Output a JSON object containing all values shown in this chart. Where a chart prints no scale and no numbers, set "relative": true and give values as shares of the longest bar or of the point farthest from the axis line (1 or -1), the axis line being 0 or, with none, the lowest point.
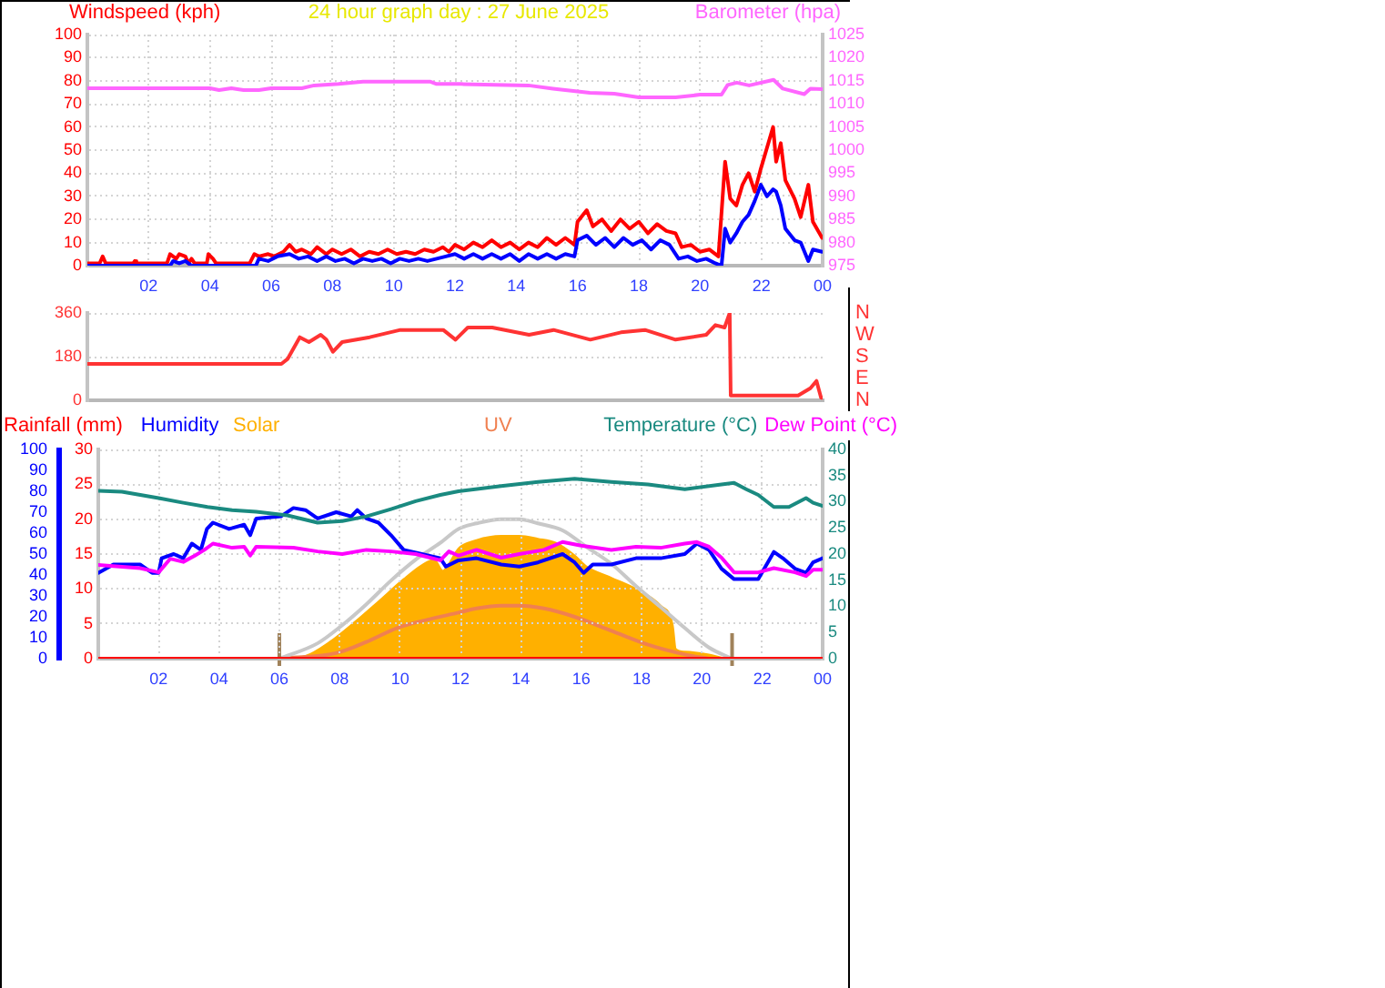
{
  "chart_data": [
    {
      "type": "line",
      "title": "24 hour graph day : 27 June 2025",
      "ylabel": "Windspeed (kph)",
      "y2label": "Barometer (hpa)",
      "xlim": [
        "2025-06-27T00:00",
        "2025-06-28T00:00"
      ],
      "xticks": [
        {
          "value": "2025-06-27T02:00",
          "label": "02"
        },
        {
          "value": "2025-06-27T04:00",
          "label": "04"
        },
        {
          "value": "2025-06-27T06:00",
          "label": "06"
        },
        {
          "value": "2025-06-27T08:00",
          "label": "08"
        },
        {
          "value": "2025-06-27T10:00",
          "label": "10"
        },
        {
          "value": "2025-06-27T12:00",
          "label": "12"
        },
        {
          "value": "2025-06-27T14:00",
          "label": "14"
        },
        {
          "value": "2025-06-27T16:00",
          "label": "16"
        },
        {
          "value": "2025-06-27T18:00",
          "label": "18"
        },
        {
          "value": "2025-06-27T20:00",
          "label": "20"
        },
        {
          "value": "2025-06-27T22:00",
          "label": "22"
        },
        {
          "value": "2025-06-28T00:00",
          "label": "00"
        }
      ],
      "ylim": [
        0,
        100
      ],
      "yticks": [
        0,
        10,
        20,
        30,
        40,
        50,
        60,
        70,
        80,
        90,
        100
      ],
      "y2lim": [
        975,
        1025
      ],
      "y2ticks": [
        975,
        980,
        985,
        990,
        995,
        1000,
        1005,
        1010,
        1015,
        1020,
        1025
      ],
      "grid": true,
      "series": [
        {
          "color": "#ff0000",
          "x": [
            "2025-06-27T00:00",
            "2025-06-27T00:24",
            "2025-06-27T00:30",
            "2025-06-27T00:36",
            "2025-06-27T01:30",
            "2025-06-27T01:33",
            "2025-06-27T01:36",
            "2025-06-27T02:36",
            "2025-06-27T02:42",
            "2025-06-27T02:54",
            "2025-06-27T03:00",
            "2025-06-27T03:12",
            "2025-06-27T03:18",
            "2025-06-27T03:24",
            "2025-06-27T03:30",
            "2025-06-27T03:54",
            "2025-06-27T03:57",
            "2025-06-27T04:06",
            "2025-06-27T04:12",
            "2025-06-27T05:18",
            "2025-06-27T05:27",
            "2025-06-27T05:36",
            "2025-06-27T05:54",
            "2025-06-27T06:06",
            "2025-06-27T06:24",
            "2025-06-27T06:36",
            "2025-06-27T06:48",
            "2025-06-27T07:00",
            "2025-06-27T07:18",
            "2025-06-27T07:30",
            "2025-06-27T07:48",
            "2025-06-27T08:00",
            "2025-06-27T08:18",
            "2025-06-27T08:36",
            "2025-06-27T08:54",
            "2025-06-27T09:12",
            "2025-06-27T09:30",
            "2025-06-27T09:48",
            "2025-06-27T10:06",
            "2025-06-27T10:24",
            "2025-06-27T10:42",
            "2025-06-27T11:00",
            "2025-06-27T11:18",
            "2025-06-27T11:36",
            "2025-06-27T11:48",
            "2025-06-27T12:00",
            "2025-06-27T12:18",
            "2025-06-27T12:36",
            "2025-06-27T12:54",
            "2025-06-27T13:12",
            "2025-06-27T13:30",
            "2025-06-27T13:48",
            "2025-06-27T14:06",
            "2025-06-27T14:24",
            "2025-06-27T14:42",
            "2025-06-27T15:00",
            "2025-06-27T15:18",
            "2025-06-27T15:36",
            "2025-06-27T15:54",
            "2025-06-27T16:00",
            "2025-06-27T16:18",
            "2025-06-27T16:30",
            "2025-06-27T16:48",
            "2025-06-27T17:06",
            "2025-06-27T17:24",
            "2025-06-27T17:42",
            "2025-06-27T18:00",
            "2025-06-27T18:18",
            "2025-06-27T18:36",
            "2025-06-27T18:54",
            "2025-06-27T19:12",
            "2025-06-27T19:24",
            "2025-06-27T19:42",
            "2025-06-27T20:00",
            "2025-06-27T20:18",
            "2025-06-27T20:36",
            "2025-06-27T20:49",
            "2025-06-27T20:59",
            "2025-06-27T21:11",
            "2025-06-27T21:23",
            "2025-06-27T21:35",
            "2025-06-27T21:47",
            "2025-06-27T21:59",
            "2025-06-27T22:11",
            "2025-06-27T22:23",
            "2025-06-27T22:29",
            "2025-06-27T22:38",
            "2025-06-27T22:47",
            "2025-06-27T23:05",
            "2025-06-27T23:17",
            "2025-06-27T23:32",
            "2025-06-27T23:41",
            "2025-06-27T23:59"
          ],
          "values": [
            1,
            1,
            4,
            1,
            1,
            2,
            1,
            1,
            5,
            3,
            5,
            4,
            1,
            3,
            1,
            1,
            5,
            3,
            1,
            1,
            5,
            4,
            5,
            4,
            6,
            9,
            6,
            7,
            5,
            8,
            5,
            7,
            5,
            7,
            4,
            6,
            5,
            7,
            5,
            6,
            5,
            7,
            6,
            8,
            6,
            9,
            7,
            10,
            8,
            11,
            8,
            10,
            7,
            10,
            8,
            12,
            9,
            12,
            9,
            19,
            24,
            17,
            20,
            15,
            20,
            16,
            19,
            14,
            18,
            15,
            14,
            8,
            9,
            6,
            7,
            4,
            45,
            29,
            26,
            35,
            40,
            32,
            42,
            51,
            60,
            45,
            53,
            37,
            29,
            21,
            35,
            19,
            12
          ]
        },
        {
          "color": "#0000ff",
          "x": [
            "2025-06-27T00:00",
            "2025-06-27T02:42",
            "2025-06-27T02:48",
            "2025-06-27T03:00",
            "2025-06-27T03:12",
            "2025-06-27T03:24",
            "2025-06-27T05:30",
            "2025-06-27T05:36",
            "2025-06-27T05:54",
            "2025-06-27T06:12",
            "2025-06-27T06:36",
            "2025-06-27T06:54",
            "2025-06-27T07:12",
            "2025-06-27T07:30",
            "2025-06-27T07:48",
            "2025-06-27T08:06",
            "2025-06-27T08:24",
            "2025-06-27T08:42",
            "2025-06-27T09:00",
            "2025-06-27T09:18",
            "2025-06-27T09:36",
            "2025-06-27T09:54",
            "2025-06-27T10:12",
            "2025-06-27T10:30",
            "2025-06-27T10:48",
            "2025-06-27T11:06",
            "2025-06-27T11:24",
            "2025-06-27T11:42",
            "2025-06-27T12:00",
            "2025-06-27T12:18",
            "2025-06-27T12:36",
            "2025-06-27T12:54",
            "2025-06-27T13:12",
            "2025-06-27T13:30",
            "2025-06-27T13:48",
            "2025-06-27T14:06",
            "2025-06-27T14:24",
            "2025-06-27T14:42",
            "2025-06-27T15:00",
            "2025-06-27T15:18",
            "2025-06-27T15:36",
            "2025-06-27T15:54",
            "2025-06-27T16:00",
            "2025-06-27T16:18",
            "2025-06-27T16:36",
            "2025-06-27T16:54",
            "2025-06-27T17:12",
            "2025-06-27T17:30",
            "2025-06-27T17:48",
            "2025-06-27T18:06",
            "2025-06-27T18:24",
            "2025-06-27T18:42",
            "2025-06-27T19:00",
            "2025-06-27T19:18",
            "2025-06-27T19:36",
            "2025-06-27T19:54",
            "2025-06-27T20:12",
            "2025-06-27T20:30",
            "2025-06-27T20:42",
            "2025-06-27T20:49",
            "2025-06-27T20:59",
            "2025-06-27T21:11",
            "2025-06-27T21:23",
            "2025-06-27T21:35",
            "2025-06-27T21:47",
            "2025-06-27T21:59",
            "2025-06-27T22:11",
            "2025-06-27T22:23",
            "2025-06-27T22:29",
            "2025-06-27T22:38",
            "2025-06-27T22:47",
            "2025-06-27T23:05",
            "2025-06-27T23:17",
            "2025-06-27T23:32",
            "2025-06-27T23:41",
            "2025-06-27T23:59"
          ],
          "values": [
            0,
            0,
            2,
            1,
            2,
            0,
            0,
            3,
            2,
            4,
            5,
            3,
            4,
            2,
            4,
            2,
            3,
            1,
            3,
            2,
            3,
            1,
            3,
            2,
            3,
            2,
            3,
            4,
            5,
            3,
            5,
            3,
            5,
            3,
            5,
            2,
            5,
            3,
            5,
            3,
            5,
            4,
            11,
            13,
            9,
            12,
            8,
            12,
            9,
            11,
            7,
            11,
            9,
            3,
            4,
            2,
            3,
            1,
            0,
            16,
            10,
            14,
            19,
            22,
            28,
            35,
            30,
            33,
            32,
            26,
            16,
            11,
            10,
            2,
            7,
            6
          ]
        },
        {
          "color": "#ff66ff",
          "axis": "y2",
          "x": [
            "2025-06-27T00:00",
            "2025-06-27T04:00",
            "2025-06-27T04:18",
            "2025-06-27T04:42",
            "2025-06-27T05:06",
            "2025-06-27T05:36",
            "2025-06-27T06:00",
            "2025-06-27T07:00",
            "2025-06-27T07:24",
            "2025-06-27T08:12",
            "2025-06-27T09:00",
            "2025-06-27T11:12",
            "2025-06-27T11:24",
            "2025-06-27T12:12",
            "2025-06-27T14:24",
            "2025-06-27T15:12",
            "2025-06-27T16:24",
            "2025-06-27T17:12",
            "2025-06-27T18:00",
            "2025-06-27T19:12",
            "2025-06-27T20:00",
            "2025-06-27T20:42",
            "2025-06-27T20:54",
            "2025-06-27T21:12",
            "2025-06-27T21:36",
            "2025-06-27T22:24",
            "2025-06-27T22:42",
            "2025-06-27T23:24",
            "2025-06-27T23:36",
            "2025-06-28T00:00"
          ],
          "values": [
            1013.4,
            1013.4,
            1013,
            1013.4,
            1013,
            1013,
            1013.4,
            1013.4,
            1014,
            1014.3,
            1014.8,
            1014.8,
            1014.3,
            1014.3,
            1014,
            1013.3,
            1012.4,
            1012.2,
            1011.4,
            1011.4,
            1012,
            1012,
            1014.1,
            1014.6,
            1014,
            1015.2,
            1013.3,
            1012.1,
            1013.3,
            1013.2
          ]
        }
      ]
    },
    {
      "type": "line",
      "annotations": [
        "N",
        "W",
        "S",
        "E",
        "N"
      ],
      "xlim": [
        "2025-06-27T00:00",
        "2025-06-28T00:00"
      ],
      "ylim": [
        0,
        360
      ],
      "yticks": [
        0,
        180,
        360
      ],
      "tick_labels": "y",
      "grid": "y",
      "series": [
        {
          "color": "#ff3333",
          "x": [
            "2025-06-27T00:00",
            "2025-06-27T06:20",
            "2025-06-27T06:32",
            "2025-06-27T06:56",
            "2025-06-27T07:14",
            "2025-06-27T07:37",
            "2025-06-27T07:48",
            "2025-06-27T08:01",
            "2025-06-27T08:19",
            "2025-06-27T09:13",
            "2025-06-27T10:13",
            "2025-06-27T11:37",
            "2025-06-27T12:01",
            "2025-06-27T12:25",
            "2025-06-27T13:13",
            "2025-06-27T14:25",
            "2025-06-27T15:13",
            "2025-06-27T16:25",
            "2025-06-27T17:25",
            "2025-06-27T18:12",
            "2025-06-27T19:12",
            "2025-06-27T20:12",
            "2025-06-27T20:30",
            "2025-06-27T20:48",
            "2025-06-27T20:58",
            "2025-06-27T21:00",
            "2025-06-27T22:12",
            "2025-06-27T23:12",
            "2025-06-27T23:36",
            "2025-06-27T23:48",
            "2025-06-27T23:57",
            "2025-06-28T00:00"
          ],
          "values": [
            150,
            150,
            170,
            260,
            240,
            270,
            250,
            200,
            240,
            260,
            290,
            290,
            250,
            300,
            300,
            270,
            290,
            250,
            280,
            290,
            250,
            270,
            310,
            300,
            360,
            20,
            20,
            20,
            50,
            80,
            10,
            10
          ]
        }
      ]
    },
    {
      "type": "line",
      "legend": "top",
      "xlim": [
        "2025-06-27T00:00",
        "2025-06-28T00:00"
      ],
      "xticks": [
        {
          "value": "2025-06-27T02:00",
          "label": "02"
        },
        {
          "value": "2025-06-27T04:00",
          "label": "04"
        },
        {
          "value": "2025-06-27T06:00",
          "label": "06"
        },
        {
          "value": "2025-06-27T08:00",
          "label": "08"
        },
        {
          "value": "2025-06-27T10:00",
          "label": "10"
        },
        {
          "value": "2025-06-27T12:00",
          "label": "12"
        },
        {
          "value": "2025-06-27T14:00",
          "label": "14"
        },
        {
          "value": "2025-06-27T16:00",
          "label": "16"
        },
        {
          "value": "2025-06-27T18:00",
          "label": "18"
        },
        {
          "value": "2025-06-27T20:00",
          "label": "20"
        },
        {
          "value": "2025-06-27T22:00",
          "label": "22"
        },
        {
          "value": "2025-06-28T00:00",
          "label": "00"
        }
      ],
      "ylim": [
        0,
        30
      ],
      "yticks": [
        0,
        5,
        10,
        15,
        20,
        25,
        30
      ],
      "y2lim": [
        0,
        40
      ],
      "y2ticks": [
        0,
        5,
        10,
        15,
        20,
        25,
        30,
        35,
        40
      ],
      "y3lim": [
        0,
        100
      ],
      "y3ticks": [
        0,
        10,
        20,
        30,
        40,
        50,
        60,
        70,
        80,
        90,
        100
      ],
      "grid": true,
      "series": [
        {
          "name": "Rainfall (mm)",
          "color": "#ff0000",
          "x": [
            "2025-06-27T00:00",
            "2025-06-28T00:00"
          ],
          "values": [
            0,
            0
          ]
        },
        {
          "name": "Humidity",
          "color": "#0000ff",
          "axis": "y3",
          "x": [
            "2025-06-27T00:00",
            "2025-06-27T00:30",
            "2025-06-27T01:23",
            "2025-06-27T01:47",
            "2025-06-27T02:00",
            "2025-06-27T02:06",
            "2025-06-27T02:30",
            "2025-06-27T02:49",
            "2025-06-27T03:06",
            "2025-06-27T03:24",
            "2025-06-27T03:36",
            "2025-06-27T03:48",
            "2025-06-27T04:20",
            "2025-06-27T04:50",
            "2025-06-27T05:02",
            "2025-06-27T05:14",
            "2025-06-27T06:03",
            "2025-06-27T06:28",
            "2025-06-27T06:52",
            "2025-06-27T07:16",
            "2025-06-27T07:53",
            "2025-06-27T08:23",
            "2025-06-27T08:35",
            "2025-06-27T08:53",
            "2025-06-27T09:17",
            "2025-06-27T09:42",
            "2025-06-27T10:07",
            "2025-06-27T10:43",
            "2025-06-27T11:20",
            "2025-06-27T11:31",
            "2025-06-27T11:56",
            "2025-06-27T12:32",
            "2025-06-27T13:21",
            "2025-06-27T13:57",
            "2025-06-27T14:34",
            "2025-06-27T15:23",
            "2025-06-27T15:47",
            "2025-06-27T16:05",
            "2025-06-27T16:23",
            "2025-06-27T17:00",
            "2025-06-27T17:49",
            "2025-06-27T18:38",
            "2025-06-27T19:26",
            "2025-06-27T19:50",
            "2025-06-27T20:14",
            "2025-06-27T20:39",
            "2025-06-27T21:04",
            "2025-06-27T21:52",
            "2025-06-27T22:23",
            "2025-06-27T22:41",
            "2025-06-27T23:05",
            "2025-06-27T23:27",
            "2025-06-27T23:41",
            "2025-06-28T00:00"
          ],
          "values": [
            41,
            45,
            45,
            41,
            41,
            48,
            50,
            48,
            55,
            52,
            62,
            65,
            62,
            64,
            59,
            67,
            68,
            72,
            71,
            67,
            70,
            68,
            71,
            67,
            65,
            59,
            52,
            50,
            48,
            44,
            47,
            48,
            45,
            44,
            46,
            50,
            46,
            41,
            45,
            45,
            48,
            48,
            50,
            55,
            52,
            43,
            38,
            38,
            51,
            48,
            43,
            41,
            46,
            48
          ]
        },
        {
          "name": "Temperature (°C)",
          "color": "#1a8a80",
          "axis": "y2",
          "x": [
            "2025-06-27T00:00",
            "2025-06-27T00:47",
            "2025-06-27T02:00",
            "2025-06-27T02:49",
            "2025-06-27T03:37",
            "2025-06-27T04:26",
            "2025-06-27T05:14",
            "2025-06-27T06:16",
            "2025-06-27T07:16",
            "2025-06-27T08:05",
            "2025-06-27T08:53",
            "2025-06-27T09:42",
            "2025-06-27T10:31",
            "2025-06-27T11:20",
            "2025-06-27T11:56",
            "2025-06-27T13:21",
            "2025-06-27T14:34",
            "2025-06-27T15:47",
            "2025-06-27T17:00",
            "2025-06-27T18:13",
            "2025-06-27T19:26",
            "2025-06-27T20:39",
            "2025-06-27T21:04",
            "2025-06-27T21:28",
            "2025-06-27T21:52",
            "2025-06-27T22:23",
            "2025-06-27T22:53",
            "2025-06-27T23:27",
            "2025-06-27T23:41",
            "2025-06-28T00:00"
          ],
          "values": [
            32.1,
            31.9,
            30.7,
            29.8,
            29.0,
            28.4,
            28.1,
            27.4,
            26.0,
            26.3,
            27.2,
            28.6,
            30.1,
            31.3,
            32.0,
            33.0,
            33.8,
            34.4,
            33.8,
            33.3,
            32.4,
            33.3,
            33.6,
            32.4,
            31.3,
            29.0,
            29.0,
            30.7,
            29.8,
            29.2
          ]
        },
        {
          "name": "Dew Point (°C)",
          "color": "#ff00ff",
          "axis": "y2",
          "x": [
            "2025-06-27T00:00",
            "2025-06-27T01:23",
            "2025-06-27T02:00",
            "2025-06-27T02:23",
            "2025-06-27T02:49",
            "2025-06-27T03:12",
            "2025-06-27T03:31",
            "2025-06-27T03:48",
            "2025-06-27T04:26",
            "2025-06-27T04:50",
            "2025-06-27T05:02",
            "2025-06-27T05:14",
            "2025-06-27T06:28",
            "2025-06-27T07:16",
            "2025-06-27T08:05",
            "2025-06-27T08:53",
            "2025-06-27T09:42",
            "2025-06-27T10:31",
            "2025-06-27T11:20",
            "2025-06-27T11:37",
            "2025-06-27T11:56",
            "2025-06-27T12:32",
            "2025-06-27T13:21",
            "2025-06-27T13:57",
            "2025-06-27T14:46",
            "2025-06-27T15:23",
            "2025-06-27T16:00",
            "2025-06-27T17:00",
            "2025-06-27T17:49",
            "2025-06-27T18:38",
            "2025-06-27T19:26",
            "2025-06-27T19:50",
            "2025-06-27T20:14",
            "2025-06-27T20:39",
            "2025-06-27T21:04",
            "2025-06-27T21:52",
            "2025-06-27T22:23",
            "2025-06-27T23:05",
            "2025-06-27T23:27",
            "2025-06-27T23:41",
            "2025-06-28T00:00"
          ],
          "values": [
            17.9,
            17.3,
            16.5,
            19.1,
            18.5,
            19.7,
            20.8,
            22.0,
            21.2,
            21.4,
            19.7,
            21.4,
            21.2,
            20.5,
            20.0,
            20.8,
            20.5,
            20.0,
            18.8,
            20.5,
            19.7,
            20.8,
            19.3,
            20.0,
            20.8,
            22.3,
            21.6,
            20.8,
            21.4,
            21.2,
            22.0,
            22.3,
            21.4,
            19.3,
            16.5,
            16.5,
            17.3,
            16.5,
            15.8,
            17.0,
            17.0
          ]
        }
      ]
    },
    {
      "type": "area",
      "relative": true,
      "legend": "top",
      "xlim": [
        "2025-06-27T00:00",
        "2025-06-28T00:00"
      ],
      "ref_lines": [
        {
          "axis": "x",
          "value": "2025-06-27T06:00",
          "color": "#a0825a"
        },
        {
          "axis": "x",
          "value": "2025-06-27T21:00",
          "color": "#a0825a"
        }
      ],
      "series": [
        {
          "name": "Solar",
          "color": "#ffb000",
          "x": [
            "2025-06-27T06:00",
            "2025-06-27T06:52",
            "2025-06-27T07:40",
            "2025-06-27T08:29",
            "2025-06-27T09:17",
            "2025-06-27T10:07",
            "2025-06-27T10:43",
            "2025-06-27T11:08",
            "2025-06-27T11:25",
            "2025-06-27T11:37",
            "2025-06-27T11:56",
            "2025-06-27T12:32",
            "2025-06-27T13:21",
            "2025-06-27T13:57",
            "2025-06-27T14:34",
            "2025-06-27T15:10",
            "2025-06-27T15:47",
            "2025-06-27T16:11",
            "2025-06-27T17:00",
            "2025-06-27T17:49",
            "2025-06-27T18:38",
            "2025-06-27T19:02",
            "2025-06-27T19:08",
            "2025-06-27T19:26",
            "2025-06-27T20:14",
            "2025-06-27T20:52",
            "2025-06-27T21:00"
          ],
          "values": [
            0,
            0.02,
            0.12,
            0.26,
            0.41,
            0.57,
            0.67,
            0.71,
            0.63,
            0.68,
            0.79,
            0.85,
            0.88,
            0.88,
            0.86,
            0.83,
            0.74,
            0.66,
            0.58,
            0.5,
            0.38,
            0.24,
            0.07,
            0.05,
            0.03,
            0,
            0
          ]
        },
        {
          "name": "UV",
          "type": "line",
          "color": "#f08050",
          "x": [
            "2025-06-27T06:00",
            "2025-06-27T07:53",
            "2025-06-27T08:53",
            "2025-06-27T09:54",
            "2025-06-27T10:55",
            "2025-06-27T11:56",
            "2025-06-27T12:32",
            "2025-06-27T13:21",
            "2025-06-27T13:57",
            "2025-06-27T14:46",
            "2025-06-27T15:47",
            "2025-06-27T17:00",
            "2025-06-27T18:13",
            "2025-06-27T19:26",
            "2025-06-27T20:14"
          ],
          "values": [
            0,
            0.04,
            0.12,
            0.22,
            0.28,
            0.33,
            0.36,
            0.38,
            0.38,
            0.36,
            0.3,
            0.2,
            0.1,
            0.03,
            0
          ]
        },
        {
          "type": "line",
          "color": "#c8c8c8",
          "x": [
            "2025-06-27T06:00",
            "2025-06-27T07:16",
            "2025-06-27T08:05",
            "2025-06-27T08:53",
            "2025-06-27T09:42",
            "2025-06-27T10:31",
            "2025-06-27T11:20",
            "2025-06-27T11:56",
            "2025-06-27T12:32",
            "2025-06-27T13:21",
            "2025-06-27T13:57",
            "2025-06-27T14:34",
            "2025-06-27T15:23",
            "2025-06-27T16:11",
            "2025-06-27T17:00",
            "2025-06-27T17:49",
            "2025-06-27T18:38",
            "2025-06-27T19:26",
            "2025-06-27T20:14",
            "2025-06-27T21:00"
          ],
          "values": [
            0,
            0.11,
            0.24,
            0.39,
            0.56,
            0.71,
            0.83,
            0.93,
            0.97,
            1,
            1,
            0.97,
            0.92,
            0.8,
            0.68,
            0.52,
            0.37,
            0.22,
            0.08,
            0
          ]
        }
      ]
    }
  ]
}
